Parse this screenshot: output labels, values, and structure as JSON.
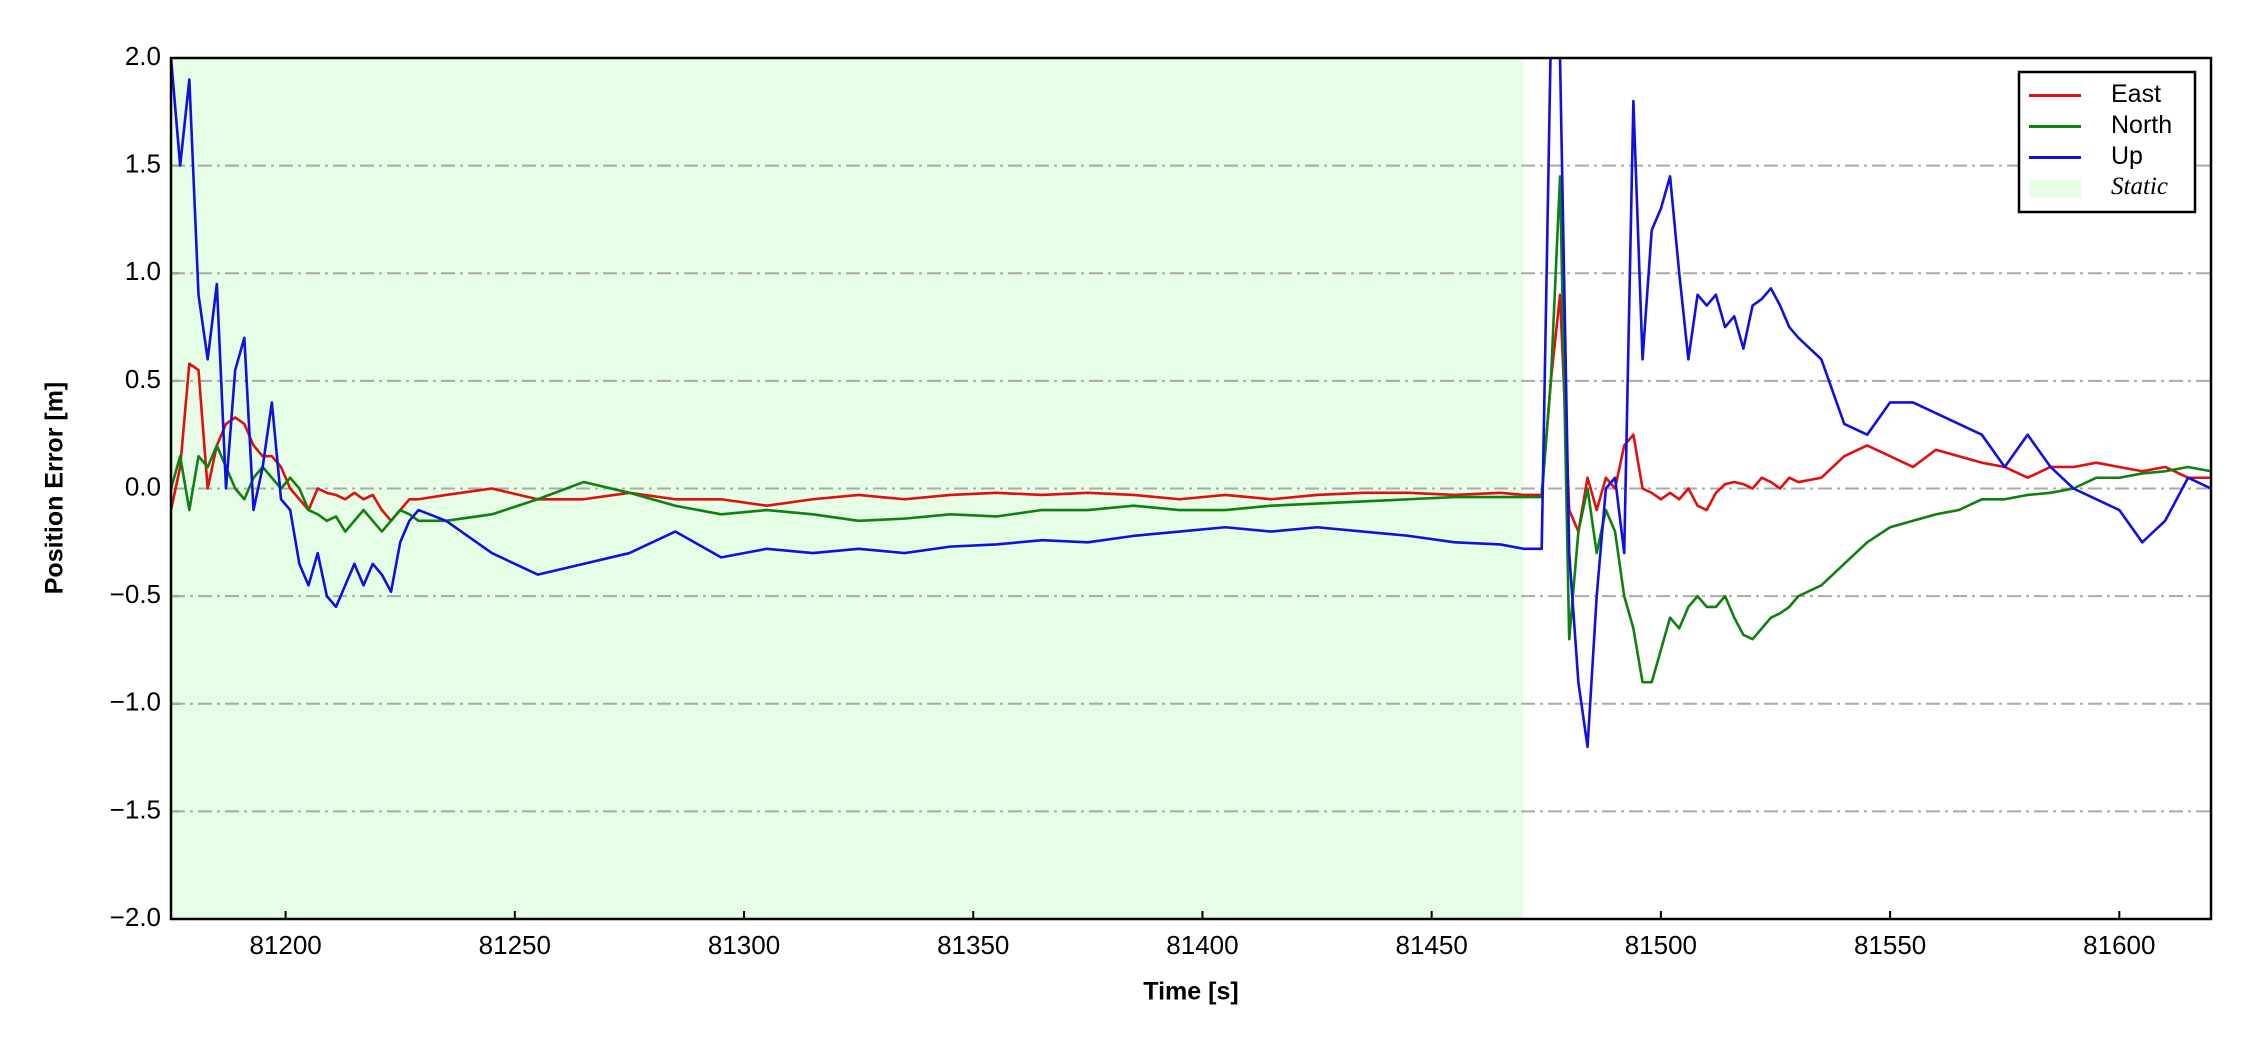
{
  "chart_data": {
    "type": "line",
    "xlabel": "Time [s]",
    "ylabel": "Position Error [m]",
    "xlim": [
      81175,
      81620
    ],
    "ylim": [
      -2,
      2
    ],
    "xticks": [
      81200,
      81250,
      81300,
      81350,
      81400,
      81450,
      81500,
      81550,
      81600
    ],
    "yticks": [
      {
        "value": -2,
        "label": "−2.0"
      },
      {
        "value": -1.5,
        "label": "−1.5"
      },
      {
        "value": -1,
        "label": "−1.0"
      },
      {
        "value": -0.5,
        "label": "−0.5"
      },
      {
        "value": 0,
        "label": "0.0"
      },
      {
        "value": 0.5,
        "label": "0.5"
      },
      {
        "value": 1,
        "label": "1.0"
      },
      {
        "value": 1.5,
        "label": "1.5"
      },
      {
        "value": 2,
        "label": "2.0"
      }
    ],
    "grid": "y",
    "legend": "upper right",
    "shade": {
      "name": "Static",
      "span": [
        81175,
        81470
      ],
      "color": "#e6fde6"
    },
    "x": [
      81175,
      81177,
      81179,
      81181,
      81183,
      81185,
      81187,
      81189,
      81191,
      81193,
      81195,
      81197,
      81199,
      81201,
      81203,
      81205,
      81207,
      81209,
      81211,
      81213,
      81215,
      81217,
      81219,
      81221,
      81223,
      81225,
      81227,
      81229,
      81235,
      81245,
      81255,
      81265,
      81275,
      81285,
      81295,
      81305,
      81315,
      81325,
      81335,
      81345,
      81355,
      81365,
      81375,
      81385,
      81395,
      81405,
      81415,
      81425,
      81435,
      81445,
      81455,
      81465,
      81470,
      81474,
      81476,
      81478,
      81480,
      81482,
      81484,
      81486,
      81488,
      81490,
      81492,
      81494,
      81496,
      81498,
      81500,
      81502,
      81504,
      81506,
      81508,
      81510,
      81512,
      81514,
      81516,
      81518,
      81520,
      81522,
      81524,
      81526,
      81528,
      81530,
      81535,
      81540,
      81545,
      81550,
      81555,
      81560,
      81565,
      81570,
      81575,
      81580,
      81585,
      81590,
      81595,
      81600,
      81605,
      81610,
      81615,
      81620
    ],
    "series": [
      {
        "name": "East",
        "color": "#e01010",
        "values": [
          -0.1,
          0.1,
          0.58,
          0.55,
          0.0,
          0.2,
          0.3,
          0.33,
          0.3,
          0.2,
          0.15,
          0.15,
          0.1,
          0.0,
          -0.05,
          -0.1,
          0.0,
          -0.02,
          -0.03,
          -0.05,
          -0.02,
          -0.05,
          -0.03,
          -0.1,
          -0.15,
          -0.1,
          -0.05,
          -0.05,
          -0.03,
          0.0,
          -0.05,
          -0.05,
          -0.02,
          -0.05,
          -0.05,
          -0.08,
          -0.05,
          -0.03,
          -0.05,
          -0.03,
          -0.02,
          -0.03,
          -0.02,
          -0.03,
          -0.05,
          -0.03,
          -0.05,
          -0.03,
          -0.02,
          -0.02,
          -0.03,
          -0.02,
          -0.03,
          -0.03,
          0.5,
          0.9,
          -0.1,
          -0.2,
          0.05,
          -0.1,
          0.05,
          0.0,
          0.2,
          0.25,
          0.0,
          -0.02,
          -0.05,
          -0.02,
          -0.05,
          0.0,
          -0.08,
          -0.1,
          -0.02,
          0.02,
          0.03,
          0.02,
          0.0,
          0.05,
          0.03,
          0.0,
          0.05,
          0.03,
          0.05,
          0.15,
          0.2,
          0.15,
          0.1,
          0.18,
          0.15,
          0.12,
          0.1,
          0.05,
          0.1,
          0.1,
          0.12,
          0.1,
          0.08,
          0.1,
          0.05,
          0.05
        ]
      },
      {
        "name": "North",
        "color": "#108010",
        "values": [
          0.0,
          0.15,
          -0.1,
          0.15,
          0.1,
          0.2,
          0.1,
          0.0,
          -0.05,
          0.05,
          0.1,
          0.05,
          0.0,
          0.05,
          0.0,
          -0.1,
          -0.12,
          -0.15,
          -0.13,
          -0.2,
          -0.15,
          -0.1,
          -0.15,
          -0.2,
          -0.15,
          -0.1,
          -0.12,
          -0.15,
          -0.15,
          -0.12,
          -0.05,
          0.03,
          -0.02,
          -0.08,
          -0.12,
          -0.1,
          -0.12,
          -0.15,
          -0.14,
          -0.12,
          -0.13,
          -0.1,
          -0.1,
          -0.08,
          -0.1,
          -0.1,
          -0.08,
          -0.07,
          -0.06,
          -0.05,
          -0.04,
          -0.04,
          -0.04,
          -0.04,
          0.5,
          1.45,
          -0.7,
          -0.2,
          0.0,
          -0.3,
          -0.1,
          -0.2,
          -0.5,
          -0.65,
          -0.9,
          -0.9,
          -0.75,
          -0.6,
          -0.65,
          -0.55,
          -0.5,
          -0.55,
          -0.55,
          -0.5,
          -0.6,
          -0.68,
          -0.7,
          -0.65,
          -0.6,
          -0.58,
          -0.55,
          -0.5,
          -0.45,
          -0.35,
          -0.25,
          -0.18,
          -0.15,
          -0.12,
          -0.1,
          -0.05,
          -0.05,
          -0.03,
          -0.02,
          0.0,
          0.05,
          0.05,
          0.07,
          0.08,
          0.1,
          0.08
        ]
      },
      {
        "name": "Up",
        "color": "#1010e0",
        "values": [
          2.0,
          1.5,
          1.9,
          0.9,
          0.6,
          0.95,
          0.0,
          0.55,
          0.7,
          -0.1,
          0.1,
          0.4,
          -0.05,
          -0.1,
          -0.35,
          -0.45,
          -0.3,
          -0.5,
          -0.55,
          -0.45,
          -0.35,
          -0.45,
          -0.35,
          -0.4,
          -0.48,
          -0.25,
          -0.15,
          -0.1,
          -0.15,
          -0.3,
          -0.4,
          -0.35,
          -0.3,
          -0.2,
          -0.32,
          -0.28,
          -0.3,
          -0.28,
          -0.3,
          -0.27,
          -0.26,
          -0.24,
          -0.25,
          -0.22,
          -0.2,
          -0.18,
          -0.2,
          -0.18,
          -0.2,
          -0.22,
          -0.25,
          -0.26,
          -0.28,
          -0.28,
          2.1,
          2.0,
          -0.3,
          -0.9,
          -1.2,
          -0.5,
          0.0,
          0.05,
          -0.3,
          1.8,
          0.6,
          1.2,
          1.3,
          1.45,
          1.0,
          0.6,
          0.9,
          0.85,
          0.9,
          0.75,
          0.8,
          0.65,
          0.85,
          0.88,
          0.93,
          0.85,
          0.75,
          0.7,
          0.6,
          0.3,
          0.25,
          0.4,
          0.4,
          0.35,
          0.3,
          0.25,
          0.1,
          0.25,
          0.1,
          0.0,
          -0.05,
          -0.1,
          -0.25,
          -0.15,
          0.05,
          0.0
        ]
      }
    ]
  }
}
